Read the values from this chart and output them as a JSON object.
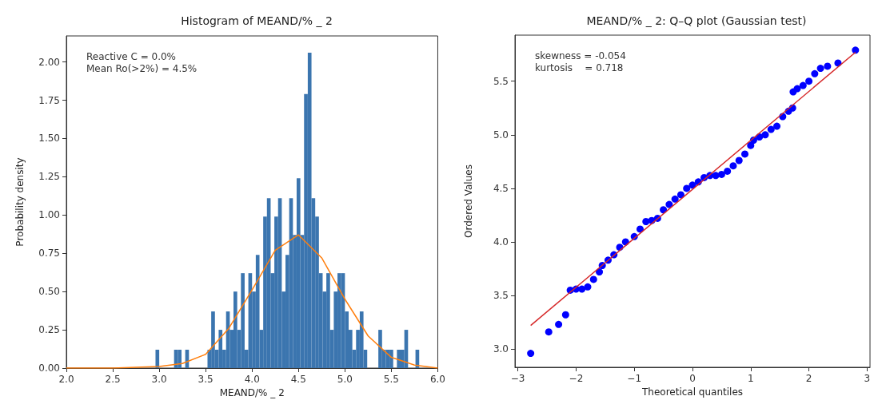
{
  "chart_data": [
    {
      "type": "histogram",
      "title": "Histogram of MEAND/% _ 2",
      "xlabel": "MEAND/% _ 2",
      "ylabel": "Probability density",
      "annotations": [
        "Reactive C = 0.0%",
        "Mean Ro(>2%) = 4.5%"
      ],
      "bins": [
        2.96,
        3.0,
        3.04,
        3.08,
        3.12,
        3.16,
        3.2,
        3.24,
        3.28,
        3.32,
        3.36,
        3.4,
        3.44,
        3.48,
        3.52,
        3.56,
        3.6,
        3.64,
        3.68,
        3.72,
        3.76,
        3.8,
        3.84,
        3.88,
        3.92,
        3.96,
        4.0,
        4.04,
        4.08,
        4.12,
        4.16,
        4.2,
        4.24,
        4.28,
        4.32,
        4.36,
        4.4,
        4.44,
        4.48,
        4.52,
        4.56,
        4.6,
        4.64,
        4.68,
        4.72,
        4.76,
        4.8,
        4.84,
        4.88,
        4.92,
        4.96,
        5.0,
        5.04,
        5.08,
        5.12,
        5.16,
        5.2,
        5.24,
        5.28,
        5.32,
        5.36,
        5.4,
        5.44,
        5.48,
        5.52,
        5.56,
        5.6,
        5.64,
        5.68,
        5.72,
        5.76,
        5.8
      ],
      "series": [
        {
          "color": "#3b75af",
          "values": [
            0.12,
            0,
            0,
            0,
            0,
            0.12,
            0.12,
            0,
            0.12,
            0,
            0,
            0,
            0,
            0,
            0.12,
            0.37,
            0.12,
            0.25,
            0.12,
            0.37,
            0.25,
            0.5,
            0.25,
            0.62,
            0.12,
            0.62,
            0.5,
            0.74,
            0.25,
            0.99,
            1.11,
            0.62,
            0.99,
            1.11,
            0.5,
            0.74,
            1.11,
            0.87,
            1.24,
            0.87,
            1.79,
            2.06,
            1.11,
            0.99,
            0.62,
            0.5,
            0.62,
            0.25,
            0.5,
            0.62,
            0.62,
            0.37,
            0.25,
            0.12,
            0.25,
            0.37,
            0.12,
            0,
            0,
            0,
            0.25,
            0.12,
            0.12,
            0.12,
            0,
            0.12,
            0.12,
            0.25,
            0,
            0,
            0.12
          ]
        },
        {
          "type": "line",
          "color": "#ff7f0e",
          "x": [
            2.0,
            2.5,
            3.0,
            3.25,
            3.5,
            3.75,
            4.0,
            4.25,
            4.5,
            4.75,
            5.0,
            5.25,
            5.5,
            5.75,
            6.0
          ],
          "values": [
            0,
            0,
            0.01,
            0.03,
            0.09,
            0.26,
            0.51,
            0.77,
            0.87,
            0.72,
            0.45,
            0.21,
            0.07,
            0.02,
            0
          ]
        }
      ],
      "xlim": [
        2,
        6
      ],
      "xticks": [
        {
          "value": 2,
          "label": "2.0"
        },
        {
          "value": 2.5,
          "label": "2.5"
        },
        {
          "value": 3,
          "label": "3.0"
        },
        {
          "value": 3.5,
          "label": "3.5"
        },
        {
          "value": 4,
          "label": "4.0"
        },
        {
          "value": 4.5,
          "label": "4.5"
        },
        {
          "value": 5,
          "label": "5.0"
        },
        {
          "value": 5.5,
          "label": "5.5"
        },
        {
          "value": 6,
          "label": "6.0"
        }
      ],
      "ylim": [
        0,
        2.17
      ],
      "yticks": [
        {
          "value": 0,
          "label": "0.00"
        },
        {
          "value": 0.25,
          "label": "0.25"
        },
        {
          "value": 0.5,
          "label": "0.50"
        },
        {
          "value": 0.75,
          "label": "0.75"
        },
        {
          "value": 1,
          "label": "1.00"
        },
        {
          "value": 1.25,
          "label": "1.25"
        },
        {
          "value": 1.5,
          "label": "1.50"
        },
        {
          "value": 1.75,
          "label": "1.75"
        },
        {
          "value": 2,
          "label": "2.00"
        }
      ]
    },
    {
      "type": "scatter",
      "title": "MEAND/% _ 2: Q–Q plot (Gaussian test)",
      "xlabel": "Theoretical quantiles",
      "ylabel": "Ordered Values",
      "annotations": [
        "skewness = -0.054",
        "kurtosis    = 0.718"
      ],
      "series": [
        {
          "marker": "circle",
          "color": "#0000ff",
          "x": [
            -2.78,
            -2.47,
            -2.3,
            -2.18,
            -2.1,
            -2.0,
            -1.9,
            -1.8,
            -1.7,
            -1.6,
            -1.55,
            -1.45,
            -1.35,
            -1.25,
            -1.15,
            -1.0,
            -0.9,
            -0.8,
            -0.7,
            -0.6,
            -0.5,
            -0.4,
            -0.3,
            -0.2,
            -0.1,
            0.0,
            0.1,
            0.2,
            0.3,
            0.4,
            0.5,
            0.6,
            0.7,
            0.8,
            0.9,
            1.0,
            1.05,
            1.15,
            1.25,
            1.35,
            1.45,
            1.55,
            1.65,
            1.72,
            1.73,
            1.8,
            1.9,
            2.0,
            2.1,
            2.2,
            2.32,
            2.5,
            2.8
          ],
          "values": [
            2.96,
            3.16,
            3.23,
            3.32,
            3.55,
            3.56,
            3.56,
            3.58,
            3.65,
            3.72,
            3.78,
            3.83,
            3.88,
            3.95,
            4.0,
            4.05,
            4.12,
            4.19,
            4.2,
            4.22,
            4.3,
            4.35,
            4.4,
            4.44,
            4.5,
            4.53,
            4.56,
            4.6,
            4.62,
            4.62,
            4.63,
            4.66,
            4.71,
            4.76,
            4.82,
            4.9,
            4.95,
            4.98,
            5.0,
            5.05,
            5.08,
            5.17,
            5.22,
            5.25,
            5.4,
            5.43,
            5.46,
            5.5,
            5.57,
            5.62,
            5.64,
            5.67,
            5.79
          ]
        },
        {
          "type": "line",
          "color": "#d62728",
          "x": [
            -2.78,
            2.8
          ],
          "values": [
            3.22,
            5.77
          ]
        }
      ],
      "xlim": [
        -3.05,
        3.05
      ],
      "xticks": [
        {
          "value": -3,
          "label": "−3"
        },
        {
          "value": -2,
          "label": "−2"
        },
        {
          "value": -1,
          "label": "−1"
        },
        0,
        1,
        2,
        3
      ],
      "ylim": [
        2.83,
        5.93
      ],
      "yticks": [
        {
          "value": 3,
          "label": "3.0"
        },
        {
          "value": 3.5,
          "label": "3.5"
        },
        {
          "value": 4,
          "label": "4.0"
        },
        {
          "value": 4.5,
          "label": "4.5"
        },
        {
          "value": 5,
          "label": "5.0"
        },
        {
          "value": 5.5,
          "label": "5.5"
        }
      ]
    }
  ]
}
